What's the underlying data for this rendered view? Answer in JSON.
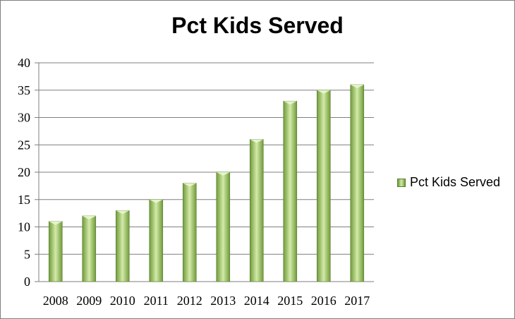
{
  "chart_data": {
    "type": "bar",
    "title": "Pct Kids Served",
    "categories": [
      "2008",
      "2009",
      "2010",
      "2011",
      "2012",
      "2013",
      "2014",
      "2015",
      "2016",
      "2017"
    ],
    "series": [
      {
        "name": "Pct Kids Served",
        "values": [
          11,
          12,
          13,
          15,
          18,
          20,
          26,
          33,
          35,
          36
        ]
      }
    ],
    "ylim": [
      0,
      40
    ],
    "yticks": [
      "0",
      "5",
      "10",
      "15",
      "20",
      "25",
      "30",
      "35",
      "40"
    ],
    "grid": true,
    "legend_position": "right",
    "colors": {
      "bar_dark": "#6f9a3a",
      "bar_light": "#d3eaa8",
      "bar_top": "#e9f6cf",
      "grid": "#7f7f7f"
    }
  }
}
